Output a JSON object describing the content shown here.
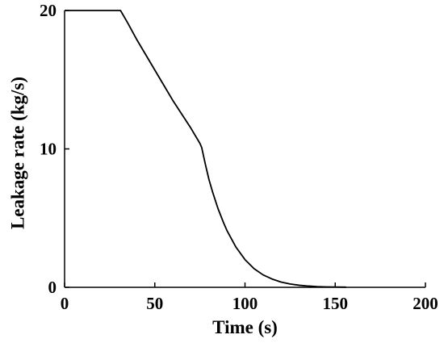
{
  "chart_data": {
    "type": "line",
    "title": "",
    "xlabel": "Time (s)",
    "ylabel": "Leakage rate (kg/s)",
    "xlim": [
      0,
      200
    ],
    "ylim": [
      0,
      20
    ],
    "x_ticks": [
      0,
      50,
      100,
      150,
      200
    ],
    "y_ticks": [
      0,
      10,
      20
    ],
    "x_tick_labels": [
      "0",
      "50",
      "100",
      "150",
      "200"
    ],
    "y_tick_labels": [
      "0",
      "10",
      "20"
    ],
    "grid": false,
    "legend": "none",
    "line_color": "#000000",
    "series": [
      {
        "x": [
          0,
          31,
          35,
          40,
          45,
          50,
          55,
          60,
          65,
          70,
          75,
          76,
          78,
          80,
          82,
          85,
          88,
          90,
          95,
          100,
          105,
          110,
          115,
          120,
          125,
          130,
          135,
          140,
          145,
          150,
          156
        ],
        "y": [
          20,
          20,
          19.1,
          17.9,
          16.8,
          15.7,
          14.6,
          13.5,
          12.5,
          11.5,
          10.4,
          10.1,
          8.9,
          7.8,
          6.9,
          5.7,
          4.7,
          4.1,
          2.9,
          2.0,
          1.35,
          0.9,
          0.6,
          0.38,
          0.24,
          0.15,
          0.09,
          0.05,
          0.03,
          0.02,
          0.01
        ]
      }
    ]
  }
}
